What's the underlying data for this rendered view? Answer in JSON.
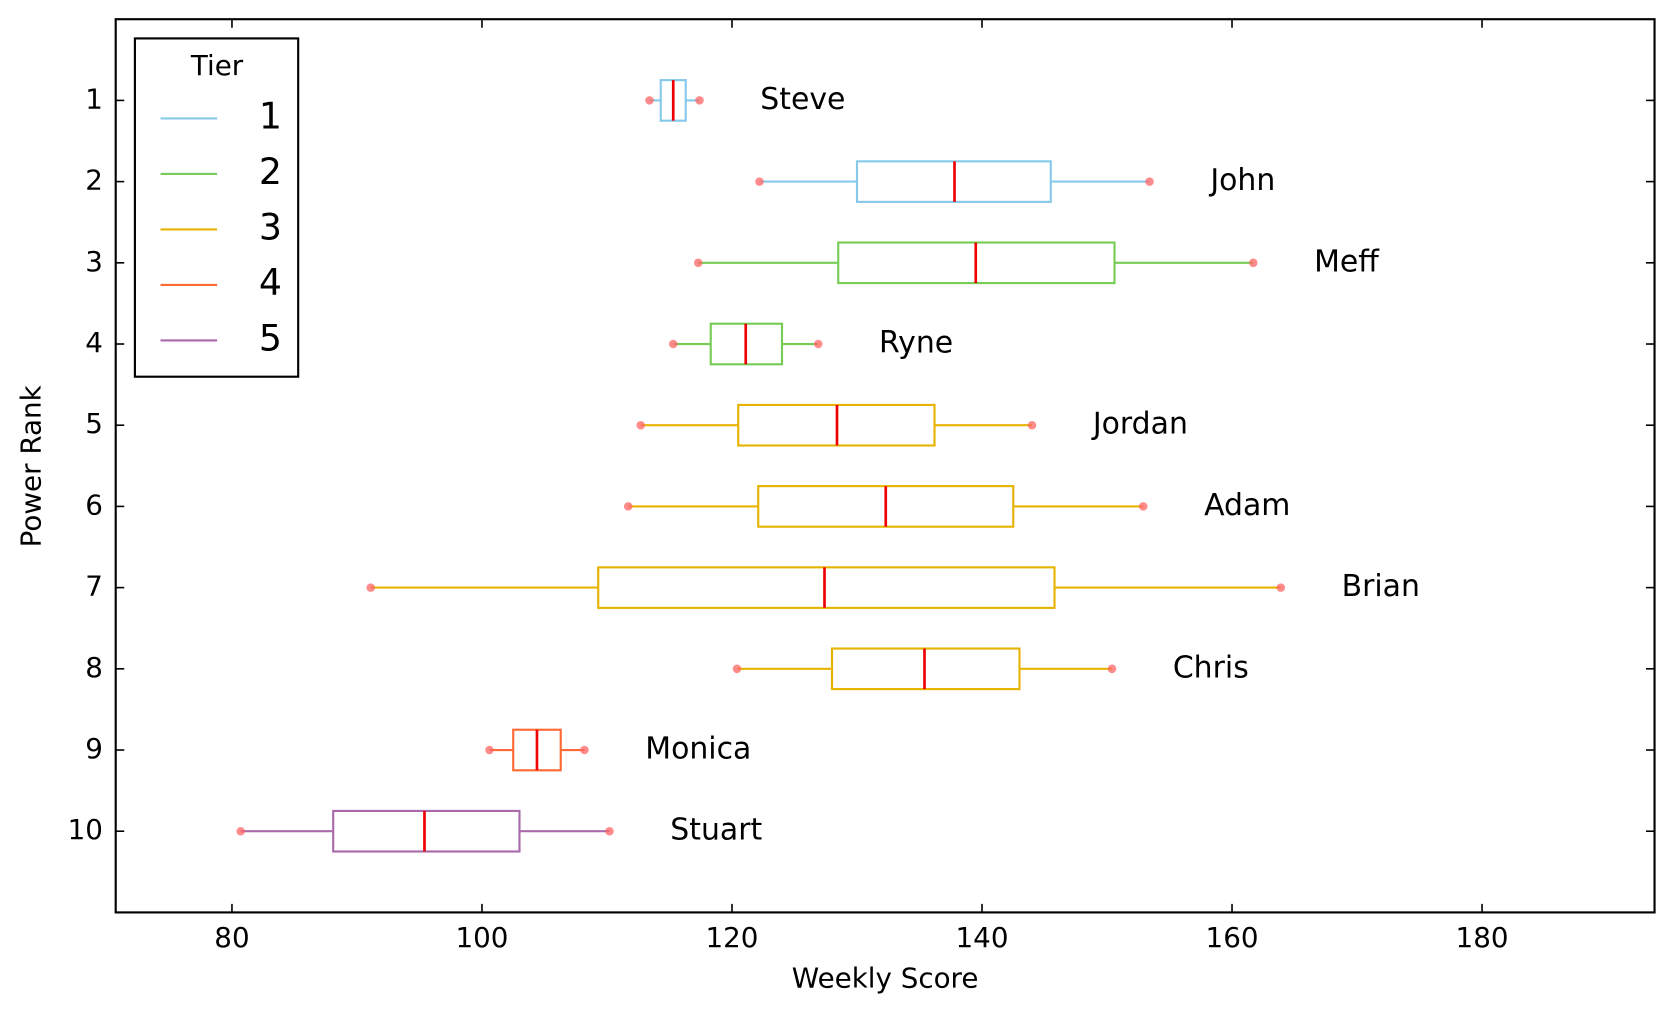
{
  "chart_data": {
    "type": "box",
    "xlabel": "Weekly Score",
    "ylabel": "Power Rank",
    "xlim": [
      70.7,
      193.8
    ],
    "xticks": [
      80,
      100,
      120,
      140,
      160,
      180
    ],
    "ylim": [
      11,
      0
    ],
    "yticks": [
      1,
      2,
      3,
      4,
      5,
      6,
      7,
      8,
      9,
      10
    ],
    "median_color": "#ee0000",
    "point_color": "#ff6666",
    "legend": {
      "title": "Tier",
      "position": "upper left",
      "entries": [
        {
          "name": "1",
          "color": "#87c9ea"
        },
        {
          "name": "2",
          "color": "#77cc55"
        },
        {
          "name": "3",
          "color": "#e6b400"
        },
        {
          "name": "4",
          "color": "#ff6a33"
        },
        {
          "name": "5",
          "color": "#a86aaa"
        }
      ]
    },
    "boxes": [
      {
        "name": "Steve",
        "y": 1,
        "tier": 0,
        "whislo": 113.4,
        "q1": 114.3,
        "med": 115.3,
        "q3": 116.3,
        "whishi": 117.4
      },
      {
        "name": "John",
        "y": 2,
        "tier": 0,
        "whislo": 122.2,
        "q1": 130.0,
        "med": 137.8,
        "q3": 145.5,
        "whishi": 153.4
      },
      {
        "name": "Meff",
        "y": 3,
        "tier": 1,
        "whislo": 117.3,
        "q1": 128.5,
        "med": 139.5,
        "q3": 150.6,
        "whishi": 161.7
      },
      {
        "name": "Ryne",
        "y": 4,
        "tier": 1,
        "whislo": 115.3,
        "q1": 118.3,
        "med": 121.1,
        "q3": 124.0,
        "whishi": 126.9
      },
      {
        "name": "Jordan",
        "y": 5,
        "tier": 2,
        "whislo": 112.7,
        "q1": 120.5,
        "med": 128.4,
        "q3": 136.2,
        "whishi": 144.0
      },
      {
        "name": "Adam",
        "y": 6,
        "tier": 2,
        "whislo": 111.7,
        "q1": 122.1,
        "med": 132.3,
        "q3": 142.5,
        "whishi": 152.9
      },
      {
        "name": "Brian",
        "y": 7,
        "tier": 2,
        "whislo": 91.1,
        "q1": 109.3,
        "med": 127.4,
        "q3": 145.8,
        "whishi": 163.9
      },
      {
        "name": "Chris",
        "y": 8,
        "tier": 2,
        "whislo": 120.4,
        "q1": 128.0,
        "med": 135.4,
        "q3": 143.0,
        "whishi": 150.4
      },
      {
        "name": "Monica",
        "y": 9,
        "tier": 3,
        "whislo": 100.6,
        "q1": 102.5,
        "med": 104.4,
        "q3": 106.3,
        "whishi": 108.2
      },
      {
        "name": "Stuart",
        "y": 10,
        "tier": 4,
        "whislo": 80.7,
        "q1": 88.1,
        "med": 95.4,
        "q3": 103.0,
        "whishi": 110.2
      }
    ]
  }
}
